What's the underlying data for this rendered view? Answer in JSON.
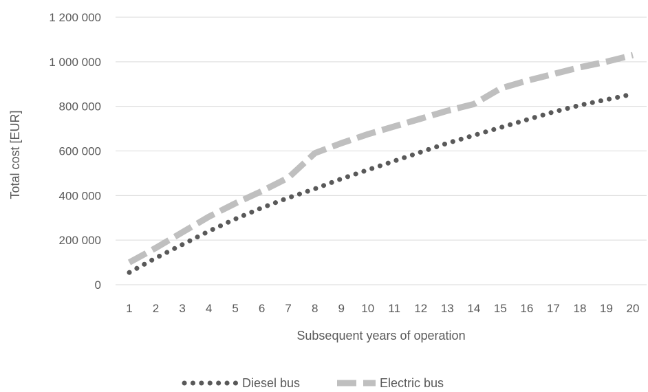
{
  "chart_data": {
    "type": "line",
    "title": "",
    "xlabel": "Subsequent years of operation",
    "ylabel": "Total cost [EUR]",
    "ylim": [
      0,
      1200000
    ],
    "yticks": [
      0,
      200000,
      400000,
      600000,
      800000,
      1000000,
      1200000
    ],
    "ytick_labels": [
      "0",
      "200 000",
      "400 000",
      "600 000",
      "800 000",
      "1 000 000",
      "1 200 000"
    ],
    "categories": [
      "1",
      "2",
      "3",
      "4",
      "5",
      "6",
      "7",
      "8",
      "9",
      "10",
      "11",
      "12",
      "13",
      "14",
      "15",
      "16",
      "17",
      "18",
      "19",
      "20"
    ],
    "grid": true,
    "legend_position": "bottom",
    "series": [
      {
        "name": "Diesel bus",
        "style": "dotted",
        "color": "#595959",
        "values": [
          55000,
          120000,
          180000,
          240000,
          295000,
          345000,
          390000,
          430000,
          475000,
          515000,
          555000,
          595000,
          635000,
          670000,
          705000,
          740000,
          775000,
          805000,
          830000,
          855000
        ]
      },
      {
        "name": "Electric bus",
        "style": "dashed",
        "color": "#bfbfbf",
        "values": [
          100000,
          165000,
          235000,
          305000,
          365000,
          420000,
          480000,
          590000,
          635000,
          675000,
          710000,
          745000,
          780000,
          810000,
          880000,
          915000,
          945000,
          975000,
          1000000,
          1030000
        ]
      }
    ]
  }
}
